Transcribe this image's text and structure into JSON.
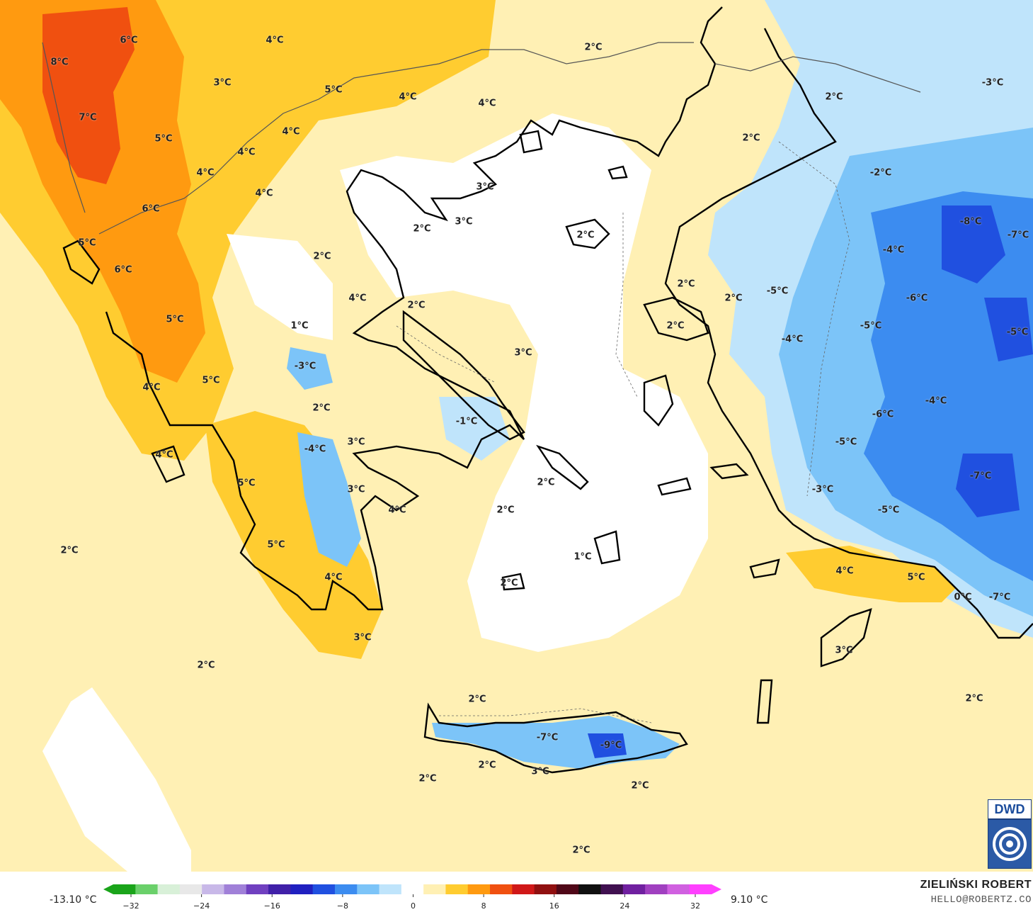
{
  "map": {
    "region": "Greece and Western Turkey",
    "variable": "temperature",
    "labels": [
      {
        "text": "6°C"
      },
      {
        "text": "8°C"
      },
      {
        "text": "7°C"
      },
      {
        "text": "5°C"
      },
      {
        "text": "4°C"
      },
      {
        "text": "6°C"
      },
      {
        "text": "5°C"
      },
      {
        "text": "6°C"
      },
      {
        "text": "5°C"
      },
      {
        "text": "4°C"
      },
      {
        "text": "5°C"
      },
      {
        "text": "4°C"
      },
      {
        "text": "3°C"
      },
      {
        "text": "4°C"
      },
      {
        "text": "4°C"
      },
      {
        "text": "5°C"
      },
      {
        "text": "4°C"
      },
      {
        "text": "4°C"
      },
      {
        "text": "4°C"
      },
      {
        "text": "4°C"
      },
      {
        "text": "2°C"
      },
      {
        "text": "3°C"
      },
      {
        "text": "2°C"
      },
      {
        "text": "3°C"
      },
      {
        "text": "2°C"
      },
      {
        "text": "4°C"
      },
      {
        "text": "2°C"
      },
      {
        "text": "1°C"
      },
      {
        "text": "-3°C"
      },
      {
        "text": "2°C"
      },
      {
        "text": "-4°C"
      },
      {
        "text": "3°C"
      },
      {
        "text": "5°C"
      },
      {
        "text": "3°C"
      },
      {
        "text": "4°C"
      },
      {
        "text": "5°C"
      },
      {
        "text": "4°C"
      },
      {
        "text": "3°C"
      },
      {
        "text": "2°C"
      },
      {
        "text": "-1°C"
      },
      {
        "text": "3°C"
      },
      {
        "text": "2°C"
      },
      {
        "text": "2°C"
      },
      {
        "text": "2°C"
      },
      {
        "text": "1°C"
      },
      {
        "text": "2°C"
      },
      {
        "text": "2°C"
      },
      {
        "text": "2°C"
      },
      {
        "text": "2°C"
      },
      {
        "text": "2°C"
      },
      {
        "text": "2°C"
      },
      {
        "text": "-2°C"
      },
      {
        "text": "-3°C"
      },
      {
        "text": "-8°C"
      },
      {
        "text": "-7°C"
      },
      {
        "text": "-4°C"
      },
      {
        "text": "-5°C"
      },
      {
        "text": "-6°C"
      },
      {
        "text": "-5°C"
      },
      {
        "text": "-4°C"
      },
      {
        "text": "-5°C"
      },
      {
        "text": "-6°C"
      },
      {
        "text": "-4°C"
      },
      {
        "text": "-5°C"
      },
      {
        "text": "-3°C"
      },
      {
        "text": "-7°C"
      },
      {
        "text": "-5°C"
      },
      {
        "text": "4°C"
      },
      {
        "text": "5°C"
      },
      {
        "text": "0°C"
      },
      {
        "text": "-7°C"
      },
      {
        "text": "3°C"
      },
      {
        "text": "2°C"
      },
      {
        "text": "2°C"
      },
      {
        "text": "2°C"
      },
      {
        "text": "-7°C"
      },
      {
        "text": "-9°C"
      },
      {
        "text": "2°C"
      },
      {
        "text": "3°C"
      },
      {
        "text": "2°C"
      },
      {
        "text": "2°C"
      },
      {
        "text": "2°C"
      }
    ]
  },
  "legend": {
    "min_label": "-13.10 °C",
    "max_label": "9.10 °C",
    "ticks": [
      "−32",
      "−24",
      "−16",
      "−8",
      "0",
      "8",
      "16",
      "24",
      "32"
    ],
    "tick_values": [
      -32,
      -24,
      -16,
      -8,
      0,
      8,
      16,
      24,
      32
    ],
    "colors": [
      "#1aa41a",
      "#6ad06a",
      "#d8f0d8",
      "#e8e8e8",
      "#c8b8e8",
      "#a080d8",
      "#7040c0",
      "#4020a8",
      "#2020c0",
      "#2050e0",
      "#3c8cf0",
      "#7cc4f8",
      "#bfe4fb",
      "#ffffff",
      "#fff0b4",
      "#ffcc30",
      "#ff9a10",
      "#f05010",
      "#d01818",
      "#901010",
      "#500818",
      "#101010",
      "#401050",
      "#7020a0",
      "#a040c0",
      "#d060e0",
      "#ff40ff"
    ]
  },
  "branding": {
    "logo_text": "DWD",
    "author_name": "ZIELIŃSKI ROBERT",
    "author_email": "HELLO@ROBERTZ.CO"
  }
}
